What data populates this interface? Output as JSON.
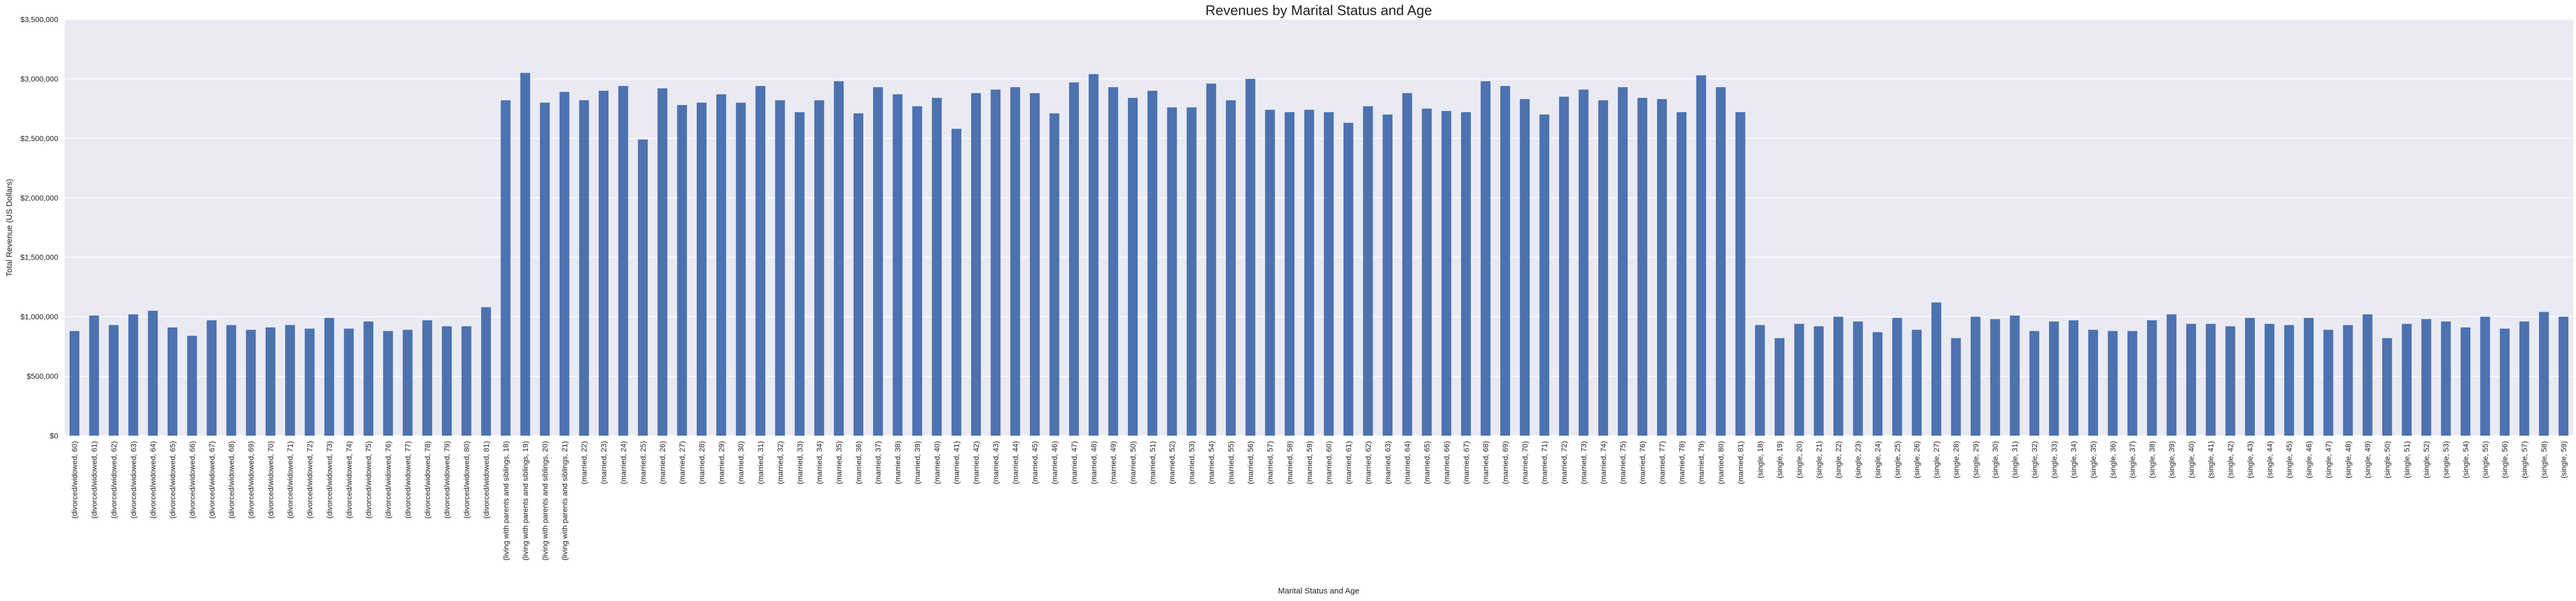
{
  "chart_data": {
    "type": "bar",
    "title": "Revenues by Marital Status and Age",
    "xlabel": "Marital Status and Age",
    "ylabel": "Total Revenue (US Dollars)",
    "ylim": [
      0,
      3500000
    ],
    "yticks": [
      0,
      500000,
      1000000,
      1500000,
      2000000,
      2500000,
      3000000,
      3500000
    ],
    "ytick_labels": [
      "$0",
      "$500,000",
      "$1,000,000",
      "$1,500,000",
      "$2,000,000",
      "$2,500,000",
      "$3,000,000",
      "$3,500,000"
    ],
    "grid": true,
    "legend": "none",
    "colors": {
      "bar": "#4c72b0",
      "plot_background": "#eaeaf2",
      "grid": "#ffffff"
    },
    "categories": [
      "(divorced/widowed, 60)",
      "(divorced/widowed, 61)",
      "(divorced/widowed, 62)",
      "(divorced/widowed, 63)",
      "(divorced/widowed, 64)",
      "(divorced/widowed, 65)",
      "(divorced/widowed, 66)",
      "(divorced/widowed, 67)",
      "(divorced/widowed, 68)",
      "(divorced/widowed, 69)",
      "(divorced/widowed, 70)",
      "(divorced/widowed, 71)",
      "(divorced/widowed, 72)",
      "(divorced/widowed, 73)",
      "(divorced/widowed, 74)",
      "(divorced/widowed, 75)",
      "(divorced/widowed, 76)",
      "(divorced/widowed, 77)",
      "(divorced/widowed, 78)",
      "(divorced/widowed, 79)",
      "(divorced/widowed, 80)",
      "(divorced/widowed, 81)",
      "(living with parents and siblings, 18)",
      "(living with parents and siblings, 19)",
      "(living with parents and siblings, 20)",
      "(living with parents and siblings, 21)",
      "(married, 22)",
      "(married, 23)",
      "(married, 24)",
      "(married, 25)",
      "(married, 26)",
      "(married, 27)",
      "(married, 28)",
      "(married, 29)",
      "(married, 30)",
      "(married, 31)",
      "(married, 32)",
      "(married, 33)",
      "(married, 34)",
      "(married, 35)",
      "(married, 36)",
      "(married, 37)",
      "(married, 38)",
      "(married, 39)",
      "(married, 40)",
      "(married, 41)",
      "(married, 42)",
      "(married, 43)",
      "(married, 44)",
      "(married, 45)",
      "(married, 46)",
      "(married, 47)",
      "(married, 48)",
      "(married, 49)",
      "(married, 50)",
      "(married, 51)",
      "(married, 52)",
      "(married, 53)",
      "(married, 54)",
      "(married, 55)",
      "(married, 56)",
      "(married, 57)",
      "(married, 58)",
      "(married, 59)",
      "(married, 60)",
      "(married, 61)",
      "(married, 62)",
      "(married, 63)",
      "(married, 64)",
      "(married, 65)",
      "(married, 66)",
      "(married, 67)",
      "(married, 68)",
      "(married, 69)",
      "(married, 70)",
      "(married, 71)",
      "(married, 72)",
      "(married, 73)",
      "(married, 74)",
      "(married, 75)",
      "(married, 76)",
      "(married, 77)",
      "(married, 78)",
      "(married, 79)",
      "(married, 80)",
      "(married, 81)",
      "(single, 18)",
      "(single, 19)",
      "(single, 20)",
      "(single, 21)",
      "(single, 22)",
      "(single, 23)",
      "(single, 24)",
      "(single, 25)",
      "(single, 26)",
      "(single, 27)",
      "(single, 28)",
      "(single, 29)",
      "(single, 30)",
      "(single, 31)",
      "(single, 32)",
      "(single, 33)",
      "(single, 34)",
      "(single, 35)",
      "(single, 36)",
      "(single, 37)",
      "(single, 38)",
      "(single, 39)",
      "(single, 40)",
      "(single, 41)",
      "(single, 42)",
      "(single, 43)",
      "(single, 44)",
      "(single, 45)",
      "(single, 46)",
      "(single, 47)",
      "(single, 48)",
      "(single, 49)",
      "(single, 50)",
      "(single, 51)",
      "(single, 52)",
      "(single, 53)",
      "(single, 54)",
      "(single, 55)",
      "(single, 56)",
      "(single, 57)",
      "(single, 58)",
      "(single, 59)"
    ],
    "values": [
      880000,
      1010000,
      930000,
      1020000,
      1050000,
      910000,
      840000,
      970000,
      930000,
      890000,
      910000,
      930000,
      900000,
      990000,
      900000,
      960000,
      880000,
      890000,
      970000,
      920000,
      920000,
      1080000,
      2820000,
      3050000,
      2800000,
      2890000,
      2820000,
      2900000,
      2940000,
      2490000,
      2920000,
      2780000,
      2800000,
      2870000,
      2800000,
      2940000,
      2820000,
      2720000,
      2820000,
      2980000,
      2710000,
      2930000,
      2870000,
      2770000,
      2840000,
      2580000,
      2880000,
      2910000,
      2930000,
      2880000,
      2710000,
      2970000,
      3040000,
      2930000,
      2840000,
      2900000,
      2760000,
      2760000,
      2960000,
      2820000,
      3000000,
      2740000,
      2720000,
      2740000,
      2720000,
      2630000,
      2770000,
      2700000,
      2880000,
      2750000,
      2730000,
      2720000,
      2980000,
      2940000,
      2830000,
      2700000,
      2850000,
      2910000,
      2820000,
      2930000,
      2840000,
      2830000,
      2720000,
      3030000,
      2930000,
      2720000,
      930000,
      820000,
      940000,
      920000,
      1000000,
      960000,
      870000,
      990000,
      890000,
      1120000,
      820000,
      1000000,
      980000,
      1010000,
      880000,
      960000,
      970000,
      890000,
      880000,
      880000,
      970000,
      1020000,
      940000,
      940000,
      920000,
      990000,
      940000,
      930000,
      990000,
      890000,
      930000,
      1020000,
      820000,
      940000,
      980000,
      960000,
      910000,
      1000000,
      900000,
      960000,
      1040000,
      1000000
    ]
  }
}
